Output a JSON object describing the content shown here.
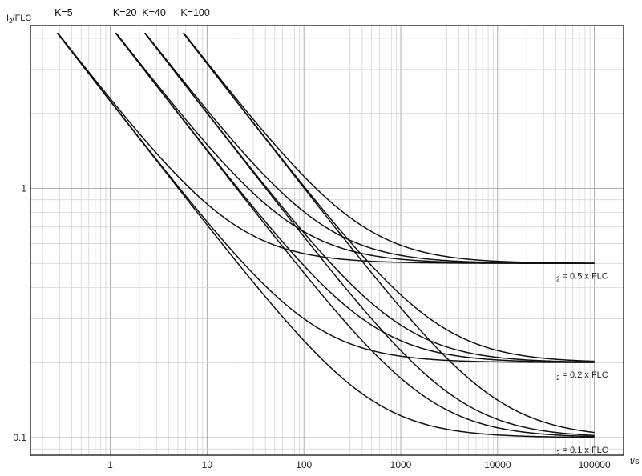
{
  "chart_data": {
    "type": "line",
    "title": "",
    "xlabel": "t/s",
    "ylabel_main": "I",
    "ylabel_sub": "2",
    "ylabel_rest": "/FLC",
    "x_scale": "log",
    "y_scale": "log",
    "xlim": [
      0.15,
      200000
    ],
    "ylim": [
      0.085,
      4.5
    ],
    "grid": true,
    "x_ticks": [
      "1",
      "10",
      "100",
      "1000",
      "10000",
      "100000"
    ],
    "y_ticks": [
      "1",
      "0.1"
    ],
    "k_labels": [
      {
        "text": "K=5",
        "k": 5
      },
      {
        "text": "K=20",
        "k": 20
      },
      {
        "text": "K=40",
        "k": 40
      },
      {
        "text": "K=100",
        "k": 100
      }
    ],
    "setting_labels": [
      {
        "main": "I",
        "sub": "2",
        "rest": " = 0.5 x FLC",
        "setting": 0.5
      },
      {
        "main": "I",
        "sub": "2",
        "rest": " = 0.2 x FLC",
        "setting": 0.2
      },
      {
        "main": "I",
        "sub": "2",
        "rest": " = 0.1 x FLC",
        "setting": 0.1
      }
    ],
    "series_formula": "I2/FLC = sqrt(K / t + setting^2)",
    "i_max": 4.2,
    "t_max": 100000,
    "series": [
      {
        "k": 5,
        "setting": 0.5
      },
      {
        "k": 20,
        "setting": 0.5
      },
      {
        "k": 40,
        "setting": 0.5
      },
      {
        "k": 100,
        "setting": 0.5
      },
      {
        "k": 5,
        "setting": 0.2
      },
      {
        "k": 20,
        "setting": 0.2
      },
      {
        "k": 40,
        "setting": 0.2
      },
      {
        "k": 100,
        "setting": 0.2
      },
      {
        "k": 5,
        "setting": 0.1
      },
      {
        "k": 20,
        "setting": 0.1
      },
      {
        "k": 40,
        "setting": 0.1
      },
      {
        "k": 100,
        "setting": 0.1
      }
    ]
  }
}
